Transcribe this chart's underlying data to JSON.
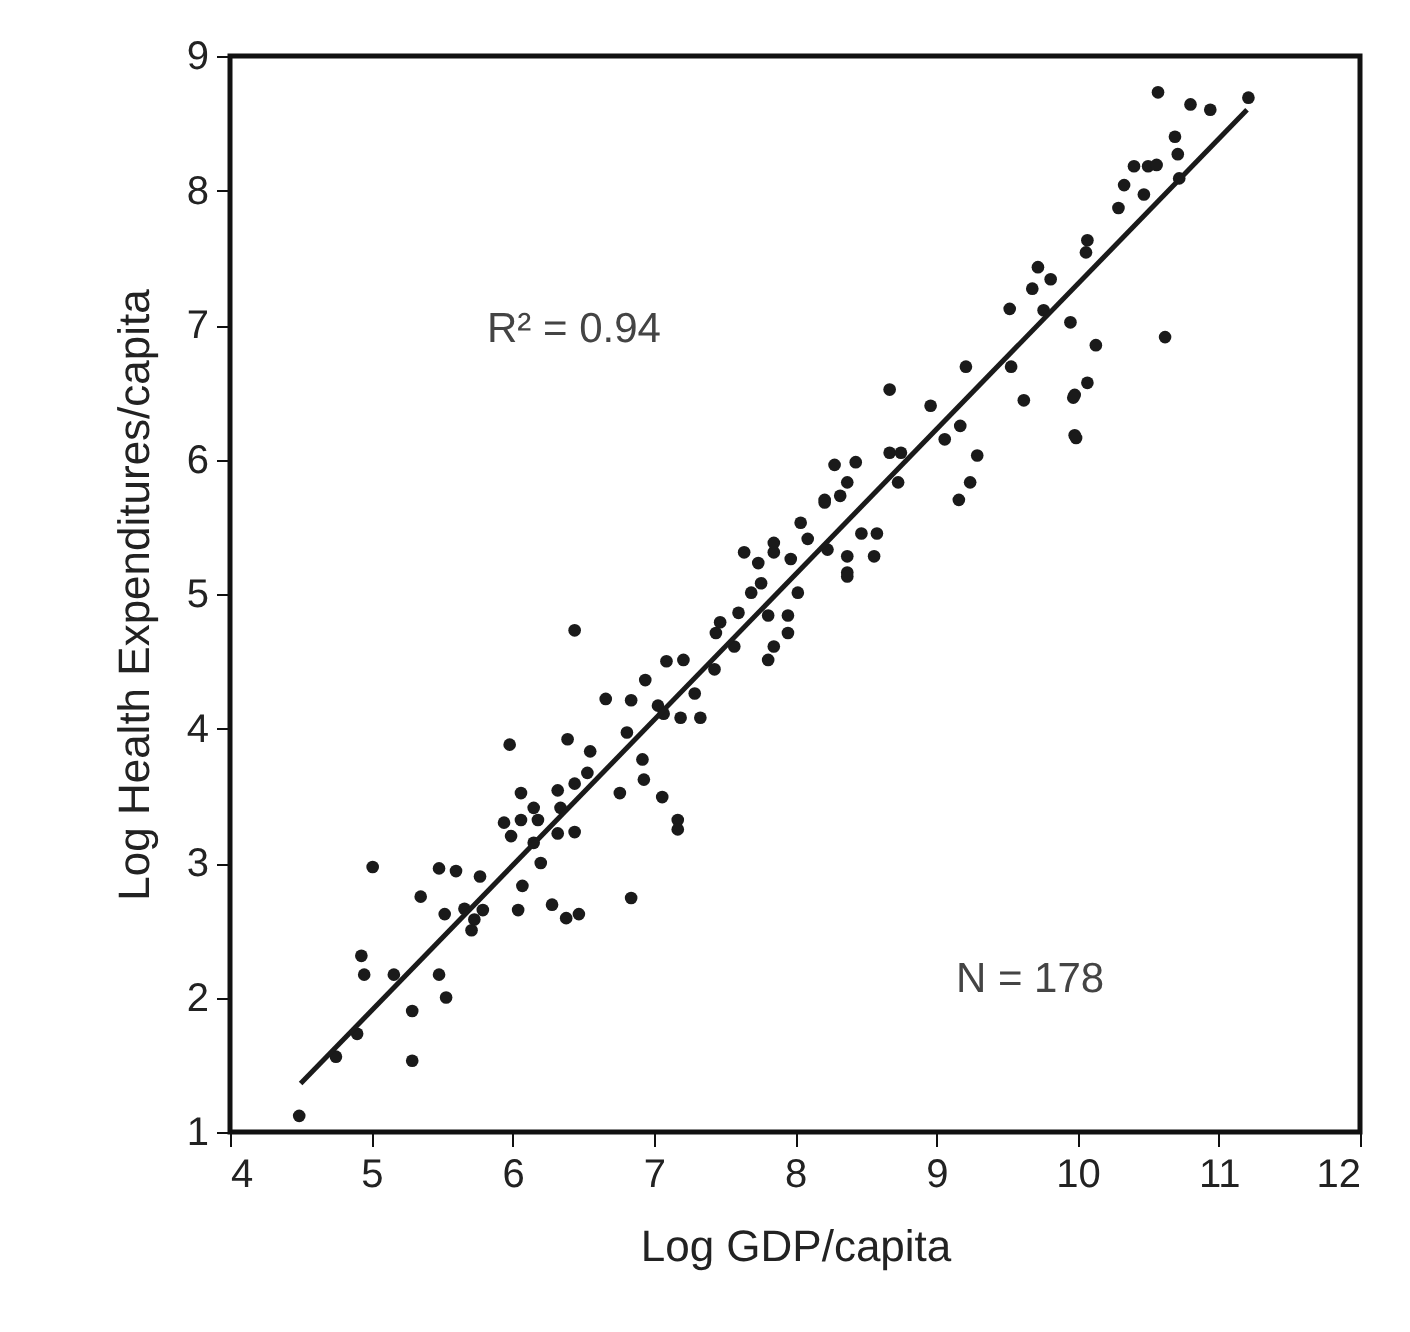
{
  "chart_data": {
    "type": "scatter",
    "xlabel": "Log GDP/capita",
    "ylabel": "Log Health Expenditures/capita",
    "xlim": [
      4,
      12
    ],
    "xticks": [
      4,
      5,
      6,
      7,
      8,
      9,
      10,
      11,
      12
    ],
    "ylim": [
      1,
      9
    ],
    "yticks": [
      1,
      2,
      3,
      4,
      5,
      6,
      7,
      8,
      9
    ],
    "marker": "circle",
    "annotations": [
      "R² = 0.94",
      "N = 178"
    ],
    "series": [
      {
        "color": "#1a1a1a",
        "x": [
          4.49,
          5.01,
          4.93,
          4.95,
          5.16,
          5.29,
          5.29,
          5.48,
          5.53,
          5.35,
          5.52,
          5.48,
          5.6,
          5.77,
          5.66,
          5.73,
          5.79,
          5.71,
          4.75,
          4.9,
          6.04,
          6.07,
          6.28,
          6.38,
          6.47,
          6.2,
          5.94,
          6.06,
          6.18,
          5.99,
          6.15,
          6.32,
          6.44,
          6.15,
          6.34,
          6.44,
          5.98,
          6.06,
          6.84,
          6.32,
          6.39,
          6.55,
          6.53,
          6.44,
          6.66,
          6.76,
          6.81,
          6.92,
          6.93,
          7.06,
          7.17,
          7.17,
          6.84,
          6.94,
          7.03,
          7.07,
          7.19,
          7.33,
          7.29,
          7.09,
          7.21,
          7.43,
          7.44,
          7.6,
          7.47,
          7.57,
          7.81,
          7.85,
          7.95,
          7.95,
          7.81,
          7.69,
          7.64,
          7.74,
          7.76,
          7.85,
          7.97,
          8.02,
          8.09,
          8.23,
          8.37,
          8.21,
          8.04,
          8.67,
          9.21,
          9.53,
          9.62,
          9.98,
          9.98,
          8.96,
          9.17,
          9.06,
          9.29,
          9.24,
          9.16,
          8.67,
          8.75,
          8.73,
          8.28,
          8.43,
          8.21,
          8.32,
          8.37,
          8.47,
          8.58,
          8.56,
          8.37,
          8.37,
          7.85,
          10.57,
          10.8,
          10.94,
          11.21,
          10.69,
          10.71,
          10.72,
          10.4,
          10.5,
          10.56,
          10.33,
          10.47,
          10.29,
          10.07,
          10.06,
          9.72,
          9.81,
          9.68,
          9.52,
          9.76,
          9.95,
          10.13,
          10.62,
          10.07,
          9.97,
          9.99
        ],
        "values": [
          1.12,
          2.97,
          2.31,
          2.17,
          2.17,
          1.53,
          1.9,
          2.17,
          2.0,
          2.75,
          2.62,
          2.96,
          2.94,
          2.9,
          2.66,
          2.58,
          2.65,
          2.5,
          1.56,
          1.73,
          2.65,
          2.83,
          2.69,
          2.59,
          2.62,
          3.0,
          3.3,
          3.32,
          3.32,
          3.2,
          3.15,
          3.22,
          3.23,
          3.41,
          3.41,
          4.73,
          3.88,
          3.52,
          2.74,
          3.54,
          3.92,
          3.83,
          3.67,
          3.59,
          4.22,
          3.52,
          3.97,
          3.77,
          3.62,
          3.49,
          3.32,
          3.25,
          4.21,
          4.36,
          4.17,
          4.11,
          4.08,
          4.08,
          4.26,
          4.5,
          4.51,
          4.44,
          4.71,
          4.86,
          4.79,
          4.61,
          4.51,
          4.61,
          4.71,
          4.84,
          4.84,
          5.01,
          5.31,
          5.23,
          5.08,
          5.31,
          5.26,
          5.01,
          5.41,
          5.33,
          5.16,
          5.68,
          5.53,
          6.52,
          6.69,
          6.69,
          6.44,
          6.48,
          6.18,
          6.4,
          6.25,
          6.15,
          6.03,
          5.83,
          5.7,
          6.05,
          6.05,
          5.83,
          5.96,
          5.98,
          5.7,
          5.73,
          5.83,
          5.45,
          5.45,
          5.28,
          5.28,
          5.13,
          5.38,
          8.73,
          8.64,
          8.6,
          8.69,
          8.4,
          8.27,
          8.09,
          8.18,
          8.18,
          8.19,
          8.04,
          7.97,
          7.87,
          7.63,
          7.54,
          7.43,
          7.34,
          7.27,
          7.12,
          7.11,
          7.02,
          6.85,
          6.91,
          6.57,
          6.46,
          6.16
        ]
      },
      {
        "type": "line",
        "marker": "none",
        "color": "#1a1a1a",
        "x": [
          4.5,
          11.2
        ],
        "values": [
          1.36,
          8.6
        ]
      }
    ]
  }
}
